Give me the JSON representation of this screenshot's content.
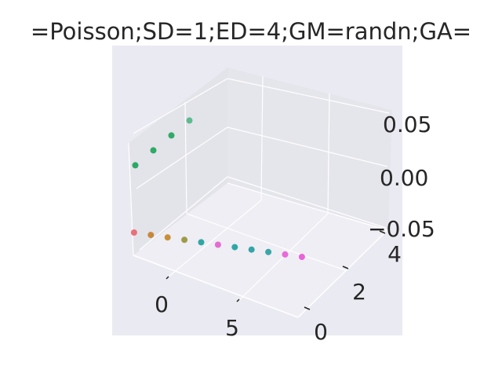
{
  "chart_data": {
    "type": "scatter",
    "projection": "3d",
    "title": "=Poisson;SD=1;ED=4;GM=randn;GA=",
    "xlabel": "",
    "ylabel": "",
    "zlabel": "",
    "grid": true,
    "background": "#eaeaf2",
    "x_ticks": [
      "0",
      "5"
    ],
    "y_ticks": [
      "0",
      "2",
      "4"
    ],
    "z_ticks": [
      "−0.05",
      "0.00",
      "0.05"
    ],
    "xlim": [
      -2.5,
      10.5
    ],
    "ylim": [
      0,
      5
    ],
    "zlim": [
      -0.06,
      0.06
    ],
    "points": [
      {
        "x": -1,
        "y": 4,
        "z": 0.06,
        "color": "#5dbb8f"
      },
      {
        "x": -1,
        "y": 3,
        "z": 0.06,
        "color": "#2faa68"
      },
      {
        "x": -1,
        "y": 2,
        "z": 0.06,
        "color": "#2eaa66"
      },
      {
        "x": -1,
        "y": 1,
        "z": 0.06,
        "color": "#2ba864"
      },
      {
        "x": 0,
        "y": 0,
        "z": 0.0,
        "color": "#e8717a"
      },
      {
        "x": 1,
        "y": 0,
        "z": 0.0,
        "color": "#c6883a"
      },
      {
        "x": 2,
        "y": 0,
        "z": 0.0,
        "color": "#c98f38"
      },
      {
        "x": 3,
        "y": 0,
        "z": 0.0,
        "color": "#9e9b48"
      },
      {
        "x": 4,
        "y": 0,
        "z": 0.0,
        "color": "#2fa7a4"
      },
      {
        "x": 5,
        "y": 0,
        "z": 0.0,
        "color": "#e36cd0"
      },
      {
        "x": 6,
        "y": 0,
        "z": 0.0,
        "color": "#2fa7a5"
      },
      {
        "x": 7,
        "y": 0,
        "z": 0.0,
        "color": "#34a4a6"
      },
      {
        "x": 8,
        "y": 0,
        "z": 0.0,
        "color": "#3aa6a8"
      },
      {
        "x": 9,
        "y": 0,
        "z": 0.0,
        "color": "#e96ad8"
      },
      {
        "x": 10,
        "y": 0,
        "z": 0.0,
        "color": "#e864d8"
      }
    ]
  }
}
